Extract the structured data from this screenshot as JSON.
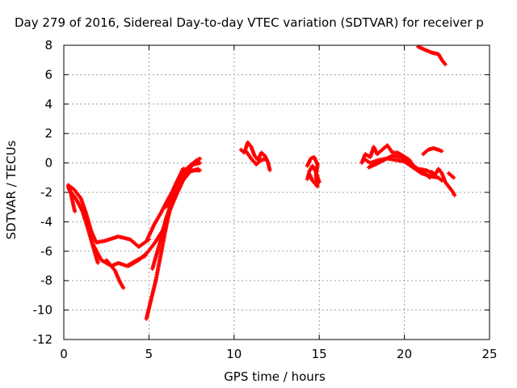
{
  "chart_data": {
    "type": "scatter",
    "title": "Day 279 of 2016, Sidereal Day-to-day VTEC variation (SDTVAR) for receiver p",
    "xlabel": "GPS time / hours",
    "ylabel": "SDTVAR / TECUs",
    "xlim": [
      0,
      25
    ],
    "ylim": [
      -12,
      8
    ],
    "grid": true,
    "legend": "none",
    "x_ticks": [
      "0",
      "5",
      "10",
      "15",
      "20",
      "25"
    ],
    "y_ticks": [
      "-12",
      "-10",
      "-8",
      "-6",
      "-4",
      "-2",
      "0",
      "2",
      "4",
      "6",
      "8"
    ],
    "marker_color": "#ff0000",
    "series": [
      {
        "traces": [
          [
            [
              0.25,
              -1.6
            ],
            [
              0.4,
              -2.0
            ],
            [
              0.55,
              -2.8
            ],
            [
              0.65,
              -3.3
            ]
          ],
          [
            [
              0.25,
              -1.5
            ],
            [
              0.6,
              -1.8
            ],
            [
              1.0,
              -2.4
            ],
            [
              1.3,
              -3.4
            ],
            [
              1.6,
              -4.6
            ],
            [
              1.9,
              -5.4
            ],
            [
              2.4,
              -5.3
            ],
            [
              3.2,
              -5.0
            ],
            [
              3.9,
              -5.2
            ],
            [
              4.4,
              -5.7
            ],
            [
              5.0,
              -5.2
            ]
          ],
          [
            [
              0.3,
              -1.8
            ],
            [
              0.7,
              -2.4
            ],
            [
              1.1,
              -3.3
            ],
            [
              1.4,
              -4.4
            ],
            [
              1.7,
              -5.6
            ],
            [
              2.0,
              -6.8
            ]
          ],
          [
            [
              1.7,
              -5.5
            ],
            [
              2.2,
              -6.6
            ],
            [
              2.8,
              -7.0
            ],
            [
              3.2,
              -6.8
            ],
            [
              3.7,
              -7.0
            ],
            [
              4.3,
              -6.6
            ],
            [
              4.8,
              -6.3
            ]
          ],
          [
            [
              2.5,
              -6.6
            ],
            [
              3.0,
              -7.3
            ],
            [
              3.3,
              -8.1
            ],
            [
              3.5,
              -8.5
            ]
          ],
          [
            [
              3.8,
              -7.0
            ],
            [
              4.4,
              -6.6
            ],
            [
              4.9,
              -6.1
            ],
            [
              5.3,
              -5.5
            ],
            [
              5.8,
              -4.6
            ],
            [
              6.2,
              -3.3
            ],
            [
              6.6,
              -2.2
            ],
            [
              7.0,
              -1.2
            ],
            [
              7.4,
              -0.6
            ],
            [
              7.9,
              -0.4
            ]
          ],
          [
            [
              4.85,
              -10.6
            ],
            [
              5.1,
              -9.4
            ],
            [
              5.4,
              -8.0
            ],
            [
              5.7,
              -6.2
            ],
            [
              6.0,
              -4.4
            ],
            [
              6.3,
              -2.8
            ],
            [
              6.6,
              -1.8
            ],
            [
              7.0,
              -0.8
            ],
            [
              7.4,
              -0.2
            ],
            [
              7.9,
              0.2
            ]
          ],
          [
            [
              5.2,
              -7.2
            ],
            [
              5.6,
              -5.6
            ],
            [
              6.0,
              -3.8
            ],
            [
              6.4,
              -2.4
            ],
            [
              6.8,
              -1.4
            ],
            [
              7.2,
              -0.6
            ],
            [
              7.6,
              -0.1
            ],
            [
              8.0,
              0.0
            ]
          ],
          [
            [
              4.9,
              -5.2
            ],
            [
              5.3,
              -4.2
            ],
            [
              5.7,
              -3.4
            ],
            [
              6.1,
              -2.5
            ],
            [
              6.5,
              -1.7
            ],
            [
              6.9,
              -0.9
            ],
            [
              7.3,
              -0.3
            ],
            [
              7.7,
              0.1
            ],
            [
              8.0,
              0.3
            ]
          ],
          [
            [
              6.0,
              -3.0
            ],
            [
              6.5,
              -1.6
            ],
            [
              7.0,
              -0.4
            ],
            [
              7.5,
              -0.5
            ],
            [
              8.0,
              -0.5
            ]
          ],
          [
            [
              10.4,
              0.9
            ],
            [
              10.6,
              0.7
            ],
            [
              10.8,
              1.4
            ],
            [
              11.0,
              1.1
            ],
            [
              11.2,
              0.5
            ],
            [
              11.4,
              0.2
            ],
            [
              11.6,
              0.7
            ],
            [
              11.8,
              0.5
            ],
            [
              12.0,
              0.0
            ],
            [
              12.1,
              -0.5
            ]
          ],
          [
            [
              10.7,
              0.8
            ],
            [
              11.0,
              0.3
            ],
            [
              11.3,
              -0.1
            ],
            [
              11.6,
              0.2
            ],
            [
              11.9,
              0.3
            ]
          ],
          [
            [
              14.3,
              -0.2
            ],
            [
              14.5,
              0.3
            ],
            [
              14.7,
              0.4
            ],
            [
              14.9,
              -0.1
            ],
            [
              14.8,
              -0.9
            ],
            [
              14.9,
              -1.6
            ],
            [
              14.6,
              -1.2
            ],
            [
              14.4,
              -0.7
            ],
            [
              14.3,
              -1.1
            ]
          ],
          [
            [
              14.4,
              -0.6
            ],
            [
              14.6,
              -0.2
            ],
            [
              14.8,
              -0.6
            ],
            [
              15.0,
              -1.3
            ]
          ],
          [
            [
              17.5,
              0.0
            ],
            [
              17.7,
              0.6
            ],
            [
              18.0,
              0.4
            ],
            [
              18.2,
              1.1
            ],
            [
              18.4,
              0.6
            ],
            [
              18.7,
              0.9
            ],
            [
              19.0,
              1.2
            ],
            [
              19.3,
              0.7
            ],
            [
              19.6,
              0.7
            ],
            [
              19.9,
              0.5
            ],
            [
              20.3,
              0.2
            ],
            [
              20.6,
              -0.3
            ],
            [
              21.0,
              -0.6
            ],
            [
              21.3,
              -0.8
            ],
            [
              21.5,
              -1.0
            ]
          ],
          [
            [
              17.6,
              0.3
            ],
            [
              18.0,
              0.0
            ],
            [
              18.5,
              0.2
            ],
            [
              19.0,
              0.3
            ],
            [
              19.5,
              0.2
            ],
            [
              20.0,
              0.1
            ],
            [
              20.5,
              -0.3
            ],
            [
              21.0,
              -0.7
            ],
            [
              21.5,
              -0.9
            ],
            [
              22.0,
              -1.0
            ],
            [
              22.2,
              -1.2
            ]
          ],
          [
            [
              17.9,
              -0.3
            ],
            [
              18.3,
              -0.1
            ],
            [
              18.8,
              0.2
            ],
            [
              19.3,
              0.5
            ],
            [
              19.8,
              0.4
            ],
            [
              20.3,
              0.0
            ],
            [
              20.8,
              -0.4
            ],
            [
              21.3,
              -0.5
            ],
            [
              21.8,
              -0.8
            ]
          ],
          [
            [
              21.6,
              -0.6
            ],
            [
              21.8,
              -0.8
            ],
            [
              22.0,
              -0.4
            ],
            [
              22.2,
              -0.7
            ],
            [
              22.4,
              -1.3
            ],
            [
              22.6,
              -1.6
            ],
            [
              22.8,
              -1.9
            ],
            [
              22.95,
              -2.2
            ]
          ],
          [
            [
              22.6,
              -0.7
            ],
            [
              22.9,
              -1.0
            ]
          ],
          [
            [
              21.1,
              0.6
            ],
            [
              21.4,
              0.9
            ],
            [
              21.7,
              1.0
            ],
            [
              22.0,
              0.9
            ],
            [
              22.2,
              0.8
            ]
          ],
          [
            [
              20.8,
              7.9
            ],
            [
              21.2,
              7.7
            ],
            [
              21.6,
              7.5
            ],
            [
              22.0,
              7.4
            ],
            [
              22.2,
              7.0
            ],
            [
              22.4,
              6.7
            ]
          ]
        ]
      }
    ]
  }
}
